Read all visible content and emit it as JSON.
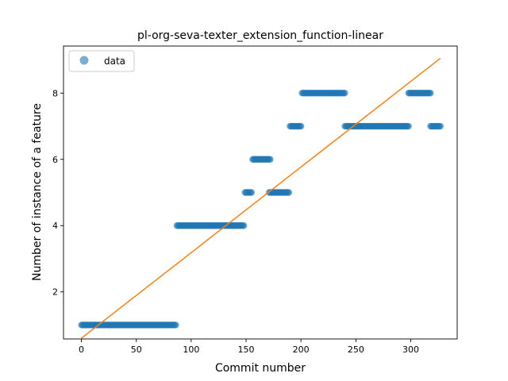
{
  "chart_data": {
    "type": "scatter",
    "title": "pl-org-seva-texter_extension_function-linear",
    "xlabel": "Commit number",
    "ylabel": "Number of instance of a feature",
    "xlim": [
      -16.3,
      342.3
    ],
    "ylim": [
      0.58,
      9.42
    ],
    "xticks": [
      0,
      50,
      100,
      150,
      200,
      250,
      300
    ],
    "yticks": [
      2,
      4,
      6,
      8
    ],
    "grid": false,
    "legend": {
      "position": "top-left",
      "entries": [
        "data"
      ]
    },
    "colors": {
      "points": "#1f77b4",
      "fit_line": "#ff7f0e"
    },
    "segments": [
      {
        "x_start": 0,
        "x_end": 86,
        "y": 1
      },
      {
        "x_start": 87,
        "x_end": 148,
        "y": 4
      },
      {
        "x_start": 149,
        "x_end": 155,
        "y": 5
      },
      {
        "x_start": 156,
        "x_end": 172,
        "y": 6
      },
      {
        "x_start": 171,
        "x_end": 189,
        "y": 5
      },
      {
        "x_start": 190,
        "x_end": 200,
        "y": 7
      },
      {
        "x_start": 201,
        "x_end": 240,
        "y": 8
      },
      {
        "x_start": 240,
        "x_end": 298,
        "y": 7
      },
      {
        "x_start": 298,
        "x_end": 318,
        "y": 8
      },
      {
        "x_start": 318,
        "x_end": 327,
        "y": 7
      }
    ],
    "fit_line": {
      "x": [
        0,
        327
      ],
      "y": [
        0.6,
        9.05
      ]
    }
  }
}
